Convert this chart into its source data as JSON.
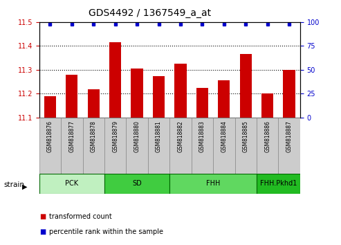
{
  "title": "GDS4492 / 1367549_a_at",
  "samples": [
    "GSM818876",
    "GSM818877",
    "GSM818878",
    "GSM818879",
    "GSM818880",
    "GSM818881",
    "GSM818882",
    "GSM818883",
    "GSM818884",
    "GSM818885",
    "GSM818886",
    "GSM818887"
  ],
  "transformed_counts": [
    11.19,
    11.28,
    11.22,
    11.415,
    11.305,
    11.275,
    11.325,
    11.225,
    11.255,
    11.365,
    11.2,
    11.3
  ],
  "percentile_ranks": [
    100,
    100,
    100,
    100,
    100,
    100,
    100,
    100,
    100,
    100,
    100,
    100
  ],
  "groups": [
    {
      "label": "PCK",
      "start": 0,
      "end": 2,
      "color": "#c0f0c0"
    },
    {
      "label": "SD",
      "start": 3,
      "end": 5,
      "color": "#40cc40"
    },
    {
      "label": "FHH",
      "start": 6,
      "end": 9,
      "color": "#60d860"
    },
    {
      "label": "FHH.Pkhd1",
      "start": 10,
      "end": 11,
      "color": "#22bb22"
    }
  ],
  "ylim_left": [
    11.1,
    11.5
  ],
  "ylim_right": [
    0,
    100
  ],
  "yticks_left": [
    11.1,
    11.2,
    11.3,
    11.4,
    11.5
  ],
  "yticks_right": [
    0,
    25,
    50,
    75,
    100
  ],
  "bar_color": "#cc0000",
  "dot_color": "#0000cc",
  "left_tick_color": "#cc0000",
  "right_tick_color": "#0000cc",
  "legend_items": [
    {
      "color": "#cc0000",
      "label": "transformed count"
    },
    {
      "color": "#0000cc",
      "label": "percentile rank within the sample"
    }
  ],
  "sample_box_color": "#cccccc",
  "group_border_color": "#006600"
}
